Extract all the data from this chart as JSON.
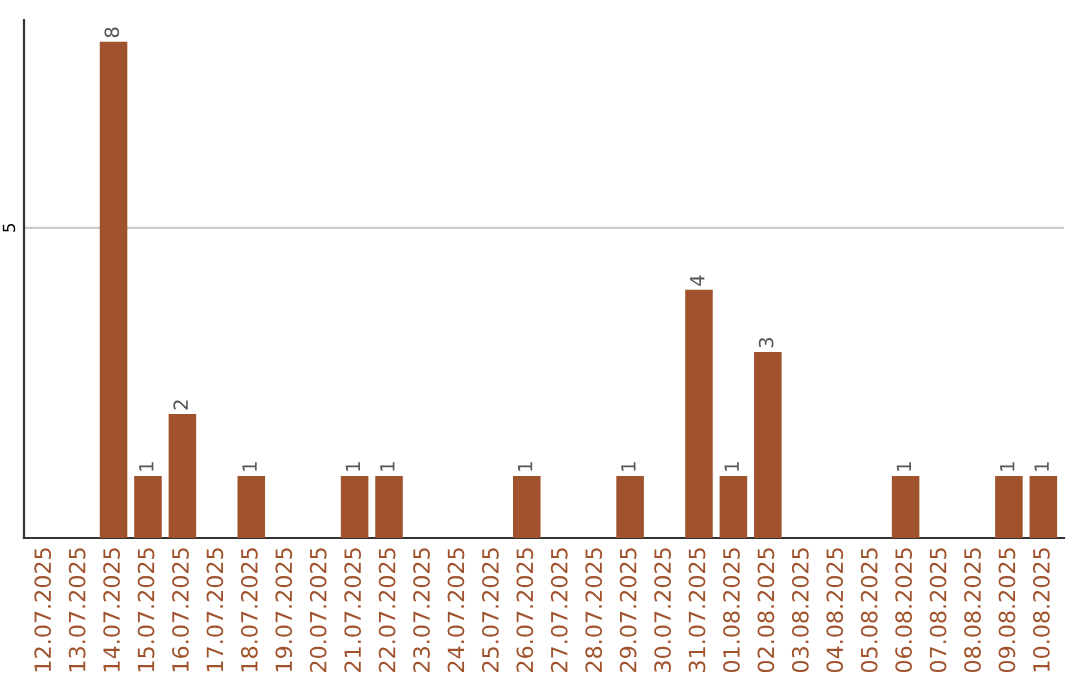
{
  "chart_data": {
    "type": "bar",
    "categories": [
      "12.07.2025",
      "13.07.2025",
      "14.07.2025",
      "15.07.2025",
      "16.07.2025",
      "17.07.2025",
      "18.07.2025",
      "19.07.2025",
      "20.07.2025",
      "21.07.2025",
      "22.07.2025",
      "23.07.2025",
      "24.07.2025",
      "25.07.2025",
      "26.07.2025",
      "27.07.2025",
      "28.07.2025",
      "29.07.2025",
      "30.07.2025",
      "31.07.2025",
      "01.08.2025",
      "02.08.2025",
      "03.08.2025",
      "04.08.2025",
      "05.08.2025",
      "06.08.2025",
      "07.08.2025",
      "08.08.2025",
      "09.08.2025",
      "10.08.2025"
    ],
    "values": [
      0,
      0,
      8,
      1,
      2,
      0,
      1,
      0,
      0,
      1,
      1,
      0,
      0,
      0,
      1,
      0,
      0,
      1,
      0,
      4,
      1,
      3,
      0,
      0,
      0,
      1,
      0,
      0,
      1,
      1
    ],
    "value_labels": [
      null,
      null,
      "8",
      "1",
      "2",
      null,
      "1",
      null,
      null,
      "1",
      "1",
      null,
      null,
      null,
      "1",
      null,
      null,
      "1",
      null,
      "4",
      "1",
      "3",
      null,
      null,
      null,
      "1",
      null,
      null,
      "1",
      "1"
    ],
    "color": "#a0522d",
    "ylim": [
      0,
      8.35
    ],
    "yticks": [
      5
    ],
    "grid": "y"
  }
}
